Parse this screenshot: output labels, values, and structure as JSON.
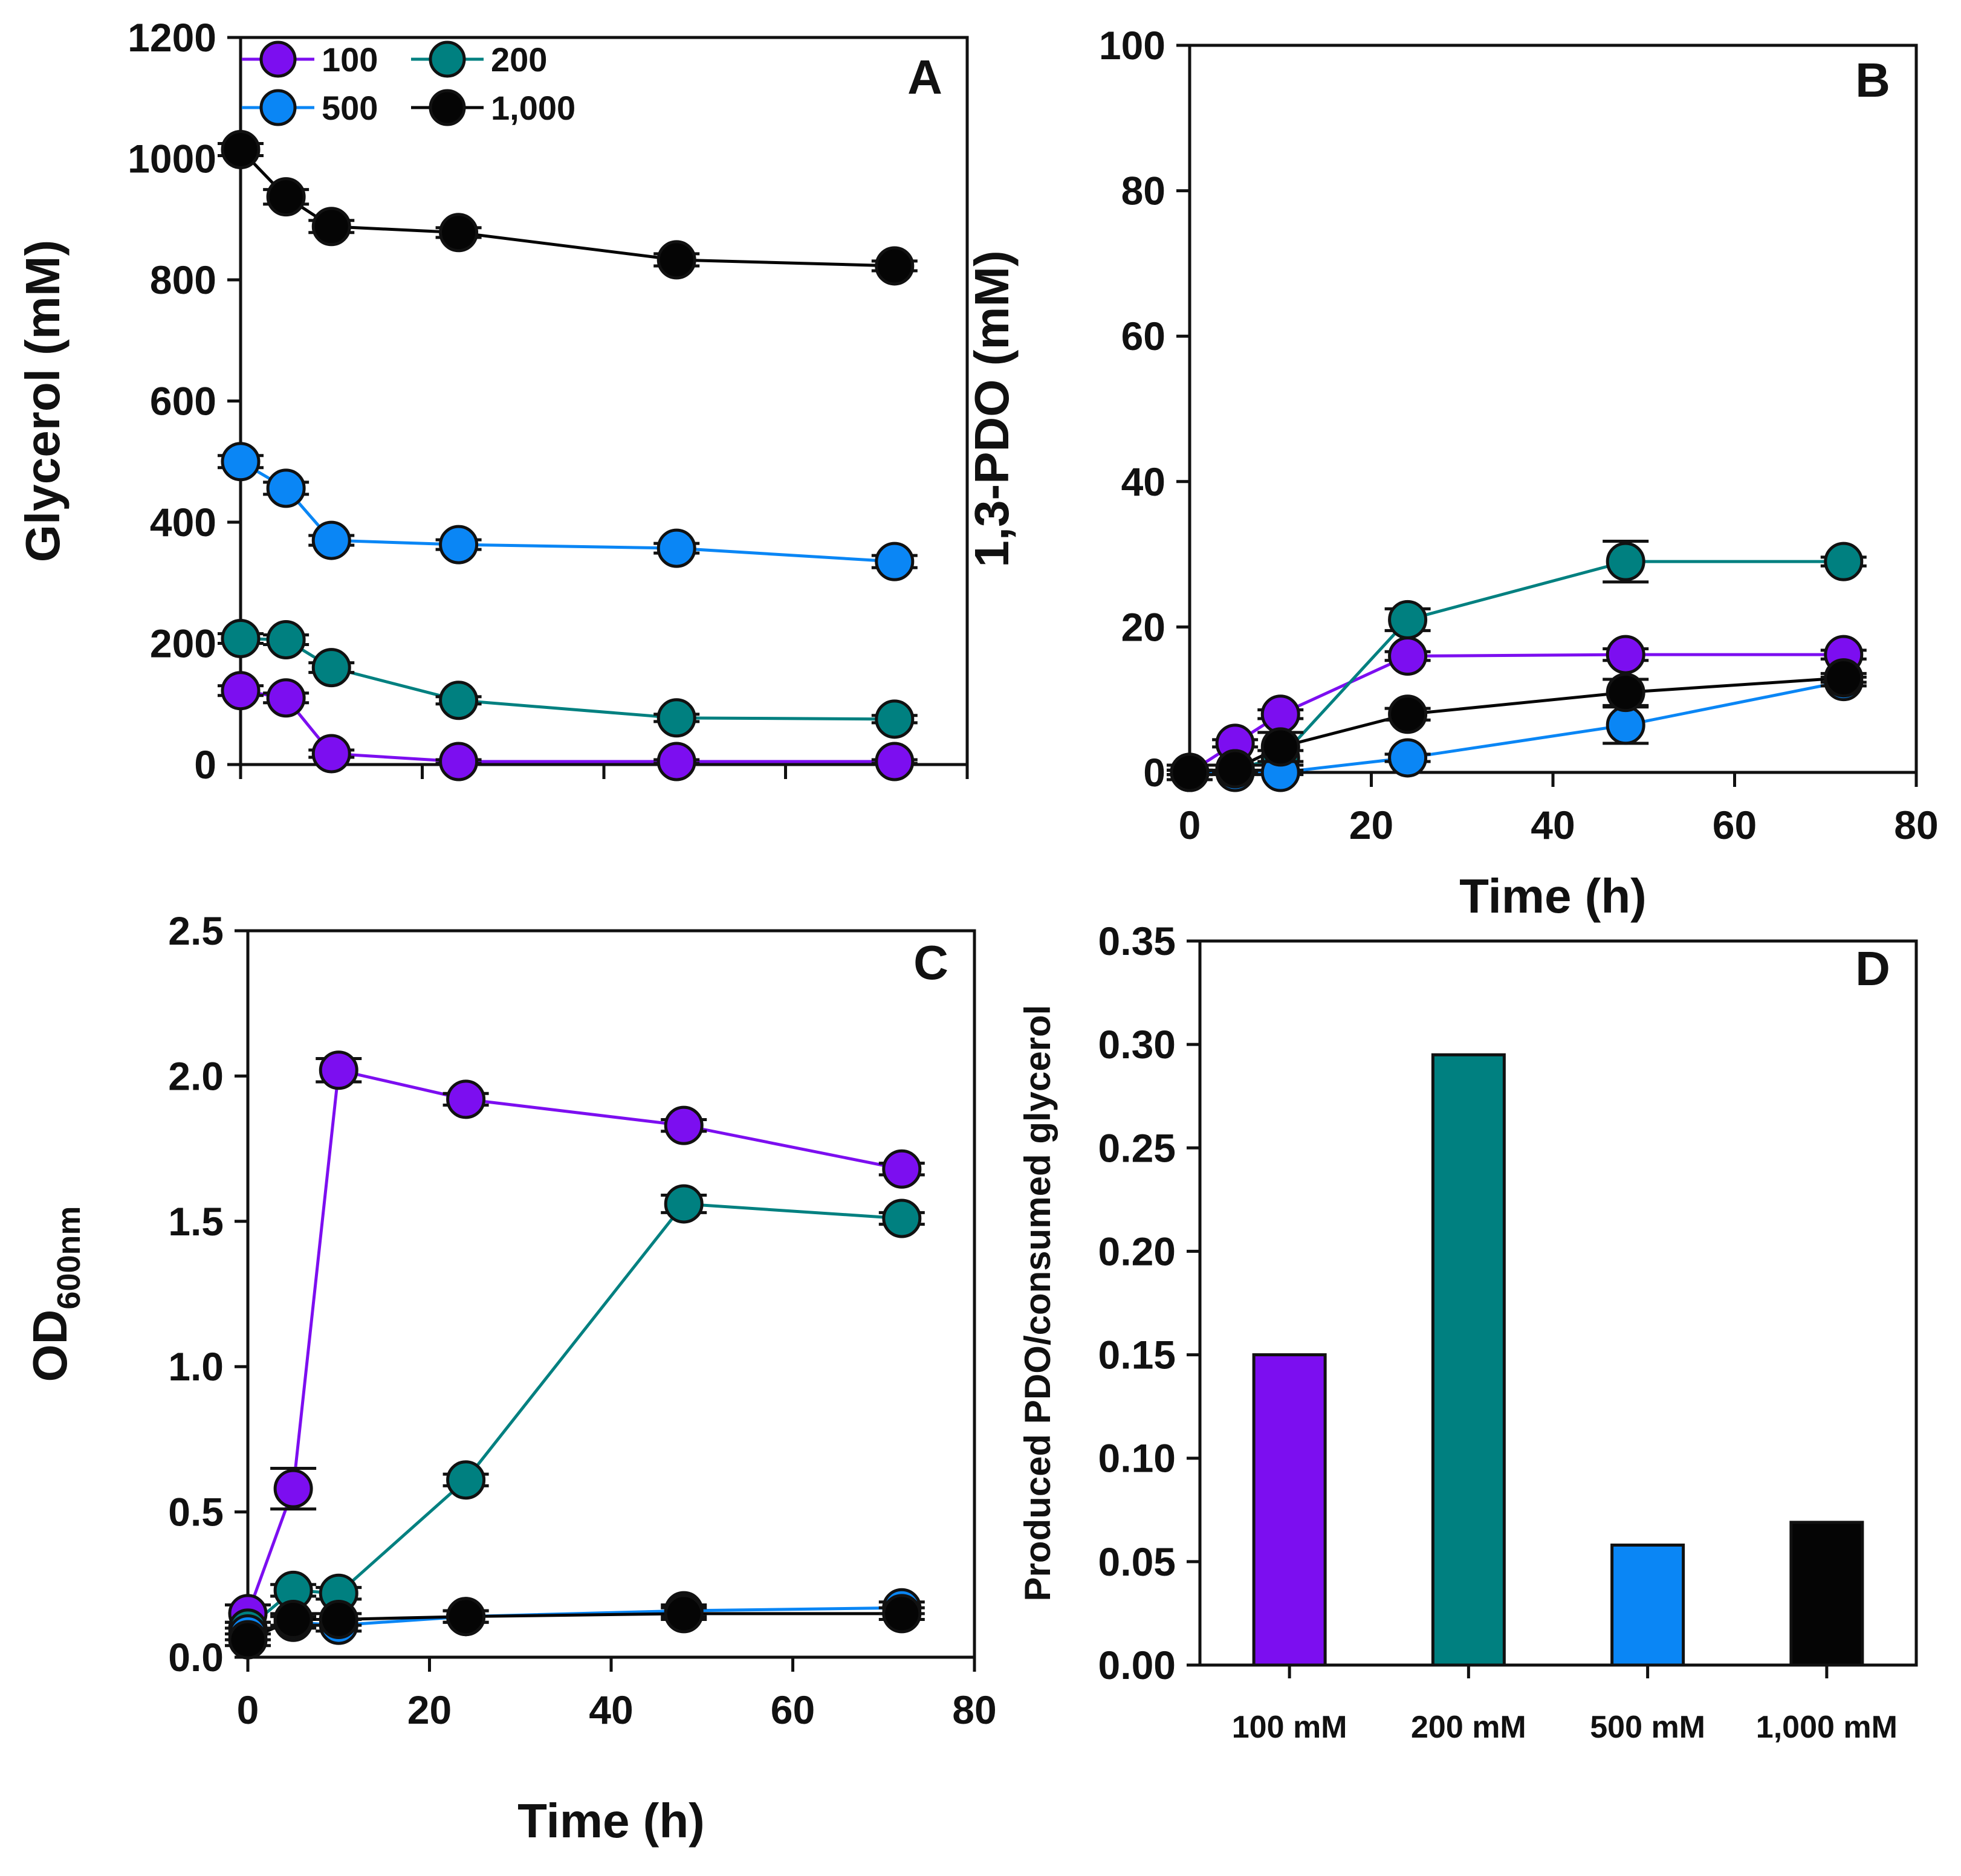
{
  "colors": {
    "s100": "#7c0ef0",
    "s200": "#008080",
    "s500": "#0a86f5",
    "s1000": "#050505",
    "axis": "#111111"
  },
  "chart_data": [
    {
      "id": "A",
      "type": "line",
      "panel_label": "A",
      "title": "",
      "xlabel": "",
      "ylabel": "Glycerol (mM)",
      "xlim": [
        0,
        80
      ],
      "ylim": [
        0,
        1200
      ],
      "xticks": [
        0,
        20,
        40,
        60,
        80
      ],
      "xtick_labels": [
        "",
        "",
        "",
        "",
        ""
      ],
      "yticks": [
        0,
        200,
        400,
        600,
        800,
        1000,
        1200
      ],
      "ytick_labels": [
        "0",
        "200",
        "400",
        "600",
        "800",
        "1000",
        "1200"
      ],
      "legend": [
        "100",
        "200",
        "500",
        "1,000"
      ],
      "legend_position": "top-left",
      "x": [
        0,
        5,
        10,
        24,
        48,
        72
      ],
      "series": [
        {
          "name": "100",
          "color_key": "s100",
          "values": [
            122,
            110,
            18,
            5,
            5,
            5
          ],
          "err": [
            8,
            8,
            6,
            3,
            3,
            3
          ]
        },
        {
          "name": "200",
          "color_key": "s200",
          "values": [
            208,
            206,
            160,
            106,
            77,
            75
          ],
          "err": [
            8,
            8,
            8,
            6,
            6,
            6
          ]
        },
        {
          "name": "500",
          "color_key": "s500",
          "values": [
            500,
            456,
            370,
            363,
            357,
            335
          ],
          "err": [
            10,
            10,
            8,
            8,
            8,
            10
          ]
        },
        {
          "name": "1,000",
          "color_key": "s1000",
          "values": [
            1015,
            937,
            888,
            878,
            833,
            823
          ],
          "err": [
            10,
            12,
            10,
            8,
            10,
            8
          ]
        }
      ]
    },
    {
      "id": "B",
      "type": "line",
      "panel_label": "B",
      "title": "",
      "xlabel": "Time (h)",
      "ylabel": "1,3-PDO (mM)",
      "xlim": [
        0,
        80
      ],
      "ylim": [
        0,
        100
      ],
      "xticks": [
        0,
        20,
        40,
        60,
        80
      ],
      "xtick_labels": [
        "0",
        "20",
        "40",
        "60",
        "80"
      ],
      "yticks": [
        0,
        20,
        40,
        60,
        80,
        100
      ],
      "ytick_labels": [
        "0",
        "20",
        "40",
        "60",
        "80",
        "100"
      ],
      "x": [
        0,
        5,
        10,
        24,
        48,
        72
      ],
      "series": [
        {
          "name": "100",
          "color_key": "s100",
          "values": [
            0,
            4,
            8,
            16,
            16.2,
            16.2
          ],
          "err": [
            0.3,
            0.5,
            0.6,
            0.6,
            0.8,
            0.6
          ]
        },
        {
          "name": "200",
          "color_key": "s200",
          "values": [
            0,
            0.5,
            2,
            21,
            29,
            29
          ],
          "err": [
            0.3,
            0.5,
            1,
            1.5,
            2.8,
            0.6
          ]
        },
        {
          "name": "500",
          "color_key": "s500",
          "values": [
            0,
            0,
            0,
            2,
            6.5,
            12.5
          ],
          "err": [
            0.3,
            0.3,
            0.3,
            0.5,
            2.5,
            0.6
          ]
        },
        {
          "name": "1,000",
          "color_key": "s1000",
          "values": [
            0,
            0.5,
            3.5,
            8,
            11,
            13
          ],
          "err": [
            1,
            0.5,
            2,
            0.8,
            1.8,
            0.6
          ]
        }
      ]
    },
    {
      "id": "C",
      "type": "line",
      "panel_label": "C",
      "title": "",
      "xlabel": "Time (h)",
      "ylabel": "OD",
      "ylabel_subscript": "600nm",
      "xlim": [
        0,
        80
      ],
      "ylim": [
        0,
        2.5
      ],
      "xticks": [
        0,
        20,
        40,
        60,
        80
      ],
      "xtick_labels": [
        "0",
        "20",
        "40",
        "60",
        "80"
      ],
      "yticks": [
        0,
        0.5,
        1.0,
        1.5,
        2.0,
        2.5
      ],
      "ytick_labels": [
        "0.0",
        "0.5",
        "1.0",
        "1.5",
        "2.0",
        "2.5"
      ],
      "x": [
        0,
        5,
        10,
        24,
        48,
        72
      ],
      "series": [
        {
          "name": "100",
          "color_key": "s100",
          "values": [
            0.15,
            0.58,
            2.02,
            1.92,
            1.83,
            1.68
          ],
          "err": [
            0.03,
            0.07,
            0.04,
            0.02,
            0.02,
            0.02
          ]
        },
        {
          "name": "200",
          "color_key": "s200",
          "values": [
            0.1,
            0.23,
            0.22,
            0.61,
            1.56,
            1.51
          ],
          "err": [
            0.02,
            0.02,
            0.02,
            0.02,
            0.03,
            0.02
          ]
        },
        {
          "name": "500",
          "color_key": "s500",
          "values": [
            0.08,
            0.12,
            0.11,
            0.14,
            0.16,
            0.17
          ],
          "err": [
            0.02,
            0.02,
            0.02,
            0.02,
            0.02,
            0.02
          ]
        },
        {
          "name": "1,000",
          "color_key": "s1000",
          "values": [
            0.06,
            0.13,
            0.13,
            0.14,
            0.15,
            0.15
          ],
          "err": [
            0.02,
            0.02,
            0.02,
            0.02,
            0.02,
            0.02
          ]
        }
      ]
    },
    {
      "id": "D",
      "type": "bar",
      "panel_label": "D",
      "title": "",
      "xlabel": "",
      "ylabel": "Produced PDO/consumed glycerol",
      "ylim": [
        0,
        0.35
      ],
      "yticks": [
        0,
        0.05,
        0.1,
        0.15,
        0.2,
        0.25,
        0.3,
        0.35
      ],
      "ytick_labels": [
        "0.00",
        "0.05",
        "0.10",
        "0.15",
        "0.20",
        "0.25",
        "0.30",
        "0.35"
      ],
      "categories": [
        "100 mM",
        "200 mM",
        "500 mM",
        "1,000 mM"
      ],
      "values": [
        0.15,
        0.295,
        0.058,
        0.069
      ],
      "bar_color_keys": [
        "s100",
        "s200",
        "s500",
        "s1000"
      ]
    }
  ]
}
